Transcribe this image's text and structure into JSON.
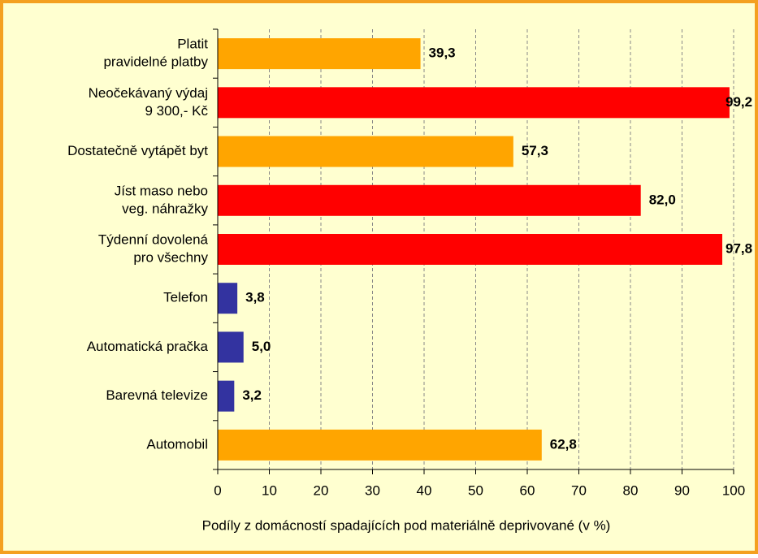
{
  "chart_data": {
    "type": "bar",
    "orientation": "horizontal",
    "categories": [
      [
        "Platit",
        "pravidelné platby"
      ],
      [
        "Neočekávaný výdaj",
        "9 300,- Kč"
      ],
      [
        "Dostatečně vytápět byt"
      ],
      [
        "Jíst maso nebo",
        "veg. náhražky"
      ],
      [
        "Týdenní dovolená",
        "pro všechny"
      ],
      [
        "Telefon"
      ],
      [
        "Automatická pračka"
      ],
      [
        "Barevná televize"
      ],
      [
        "Automobil"
      ]
    ],
    "values": [
      39.3,
      99.2,
      57.3,
      82.0,
      97.8,
      3.8,
      5.0,
      3.2,
      62.8
    ],
    "value_labels": [
      "39,3",
      "99,2",
      "57,3",
      "82,0",
      "97,8",
      "3,8",
      "5,0",
      "3,2",
      "62,8"
    ],
    "colors": [
      "#ffa500",
      "#ff0000",
      "#ffa500",
      "#ff0000",
      "#ff0000",
      "#3333a0",
      "#3333a0",
      "#3333a0",
      "#ffa500"
    ],
    "xlim": [
      0,
      100
    ],
    "xticks": [
      0,
      10,
      20,
      30,
      40,
      50,
      60,
      70,
      80,
      90,
      100
    ],
    "grid": true,
    "xlabel": "Podíly z domácností spadajících pod materiálně deprivované (v %)"
  }
}
